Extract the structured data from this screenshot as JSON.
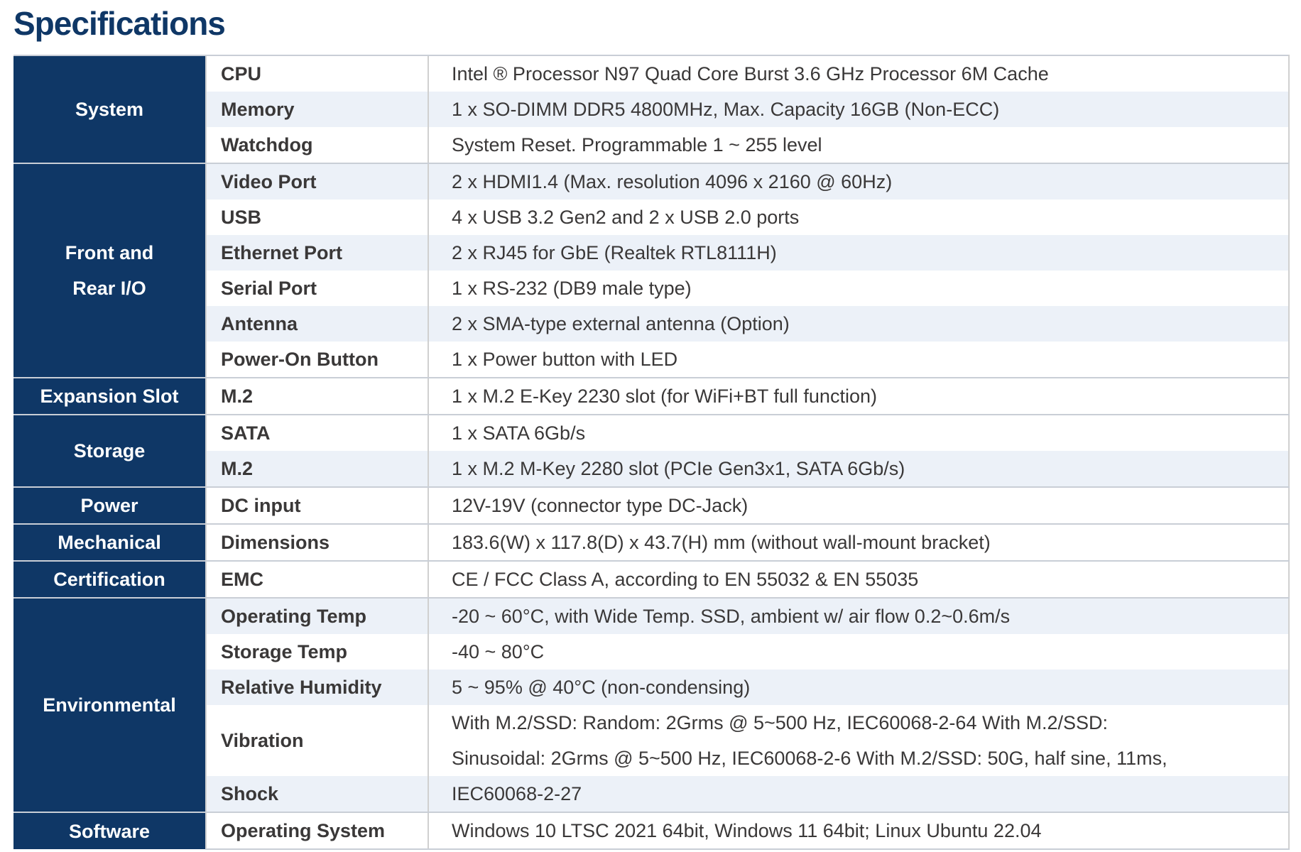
{
  "title": "Specifications",
  "groups": [
    {
      "name": "System",
      "rows": [
        {
          "label": "CPU",
          "value": "Intel ® Processor N97 Quad Core Burst 3.6 GHz Processor 6M Cache"
        },
        {
          "label": "Memory",
          "value": "1 x SO-DIMM DDR5 4800MHz, Max. Capacity 16GB (Non-ECC)"
        },
        {
          "label": "Watchdog",
          "value": "System Reset. Programmable 1 ~ 255 level"
        }
      ]
    },
    {
      "name": "Front and Rear I/O",
      "rows": [
        {
          "label": "Video Port",
          "value": "2 x HDMI1.4 (Max. resolution 4096 x 2160 @ 60Hz)"
        },
        {
          "label": "USB",
          "value": "4 x USB 3.2 Gen2 and 2 x USB 2.0 ports"
        },
        {
          "label": "Ethernet Port",
          "value": "2 x RJ45 for GbE (Realtek RTL8111H)"
        },
        {
          "label": "Serial Port",
          "value": "1 x RS-232 (DB9 male type)"
        },
        {
          "label": "Antenna",
          "value": "2 x SMA-type external antenna (Option)"
        },
        {
          "label": "Power-On Button",
          "value": "1 x Power button with LED"
        }
      ]
    },
    {
      "name": "Expansion Slot",
      "rows": [
        {
          "label": "M.2",
          "value": "1 x M.2 E-Key 2230 slot (for WiFi+BT full function)"
        }
      ]
    },
    {
      "name": "Storage",
      "rows": [
        {
          "label": "SATA",
          "value": "1 x SATA 6Gb/s"
        },
        {
          "label": "M.2",
          "value": "1 x M.2 M-Key 2280 slot (PCIe Gen3x1, SATA 6Gb/s)"
        }
      ]
    },
    {
      "name": "Power",
      "rows": [
        {
          "label": "DC input",
          "value": "12V-19V (connector type DC-Jack)"
        }
      ]
    },
    {
      "name": "Mechanical",
      "rows": [
        {
          "label": "Dimensions",
          "value": "183.6(W) x 117.8(D) x 43.7(H) mm (without wall-mount bracket)"
        }
      ]
    },
    {
      "name": "Certification",
      "rows": [
        {
          "label": "EMC",
          "value": "CE / FCC Class A, according to EN 55032 & EN 55035"
        }
      ]
    },
    {
      "name": "Environmental",
      "rows": [
        {
          "label": "Operating Temp",
          "value": "-20 ~ 60°C, with Wide Temp. SSD, ambient w/ air flow 0.2~0.6m/s"
        },
        {
          "label": "Storage Temp",
          "value": "-40 ~ 80°C"
        },
        {
          "label": "Relative Humidity",
          "value": "5 ~ 95% @ 40°C (non-condensing)"
        },
        {
          "label": "Vibration",
          "value_lines": [
            "With M.2/SSD: Random: 2Grms @ 5~500 Hz, IEC60068-2-64 With M.2/SSD:",
            "Sinusoidal: 2Grms @ 5~500 Hz, IEC60068-2-6 With M.2/SSD: 50G, half sine, 11ms,"
          ]
        },
        {
          "label": "Shock",
          "value": "IEC60068-2-27"
        }
      ]
    },
    {
      "name": "Software",
      "rows": [
        {
          "label": "Operating System",
          "value": "Windows 10 LTSC 2021 64bit, Windows 11 64bit; Linux Ubuntu 22.04"
        }
      ]
    }
  ]
}
